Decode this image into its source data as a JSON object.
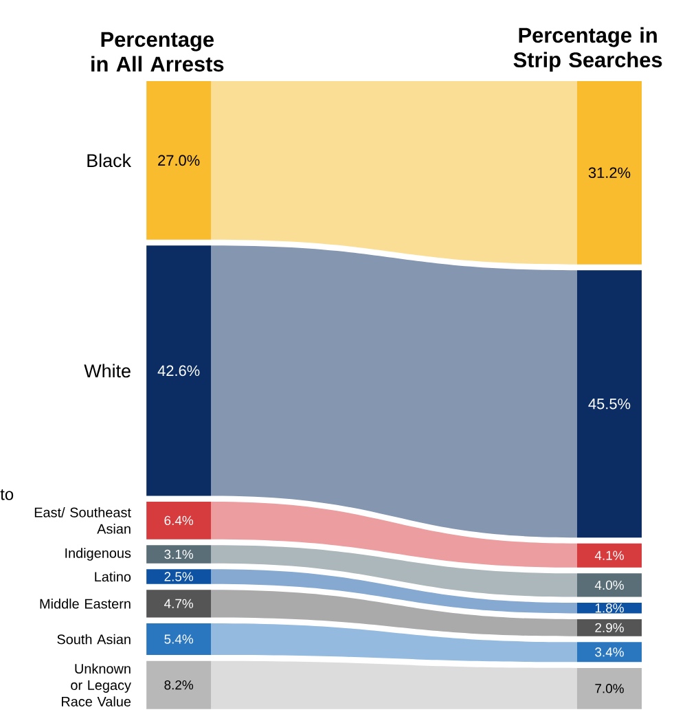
{
  "chart_data": {
    "type": "other",
    "categories": [
      "Percentage in All Arrests",
      "Percentage in Strip Searches"
    ],
    "series": [
      {
        "name": "Black",
        "color": "#f8bc2e",
        "values": [
          27.0,
          31.2
        ],
        "value_labels": [
          "27.0%",
          "31.2%"
        ]
      },
      {
        "name": "White",
        "color": "#0b2d64",
        "values": [
          42.6,
          45.5
        ],
        "value_labels": [
          "42.6%",
          "45.5%"
        ]
      },
      {
        "name": "East/ Southeast Asian",
        "color": "#d63b3e",
        "values": [
          6.4,
          4.1
        ],
        "value_labels": [
          "6.4%",
          "4.1%"
        ]
      },
      {
        "name": "Indigenous",
        "color": "#5a6e78",
        "values": [
          3.1,
          4.0
        ],
        "value_labels": [
          "3.1%",
          "4.0%"
        ]
      },
      {
        "name": "Latino",
        "color": "#0d52a3",
        "values": [
          2.5,
          1.8
        ],
        "value_labels": [
          "2.5%",
          "1.8%"
        ]
      },
      {
        "name": "Middle Eastern",
        "color": "#555555",
        "values": [
          4.7,
          2.9
        ],
        "value_labels": [
          "4.7%",
          "2.9%"
        ]
      },
      {
        "name": "South Asian",
        "color": "#2a77c0",
        "values": [
          5.4,
          3.4
        ],
        "value_labels": [
          "5.4%",
          "3.4%"
        ]
      },
      {
        "name": "Unknown or Legacy Race Value",
        "color": "#b8b8b8",
        "values": [
          8.2,
          7.0
        ],
        "value_labels": [
          "8.2%",
          "7.0%"
        ]
      }
    ],
    "annotations": [
      "to"
    ]
  }
}
